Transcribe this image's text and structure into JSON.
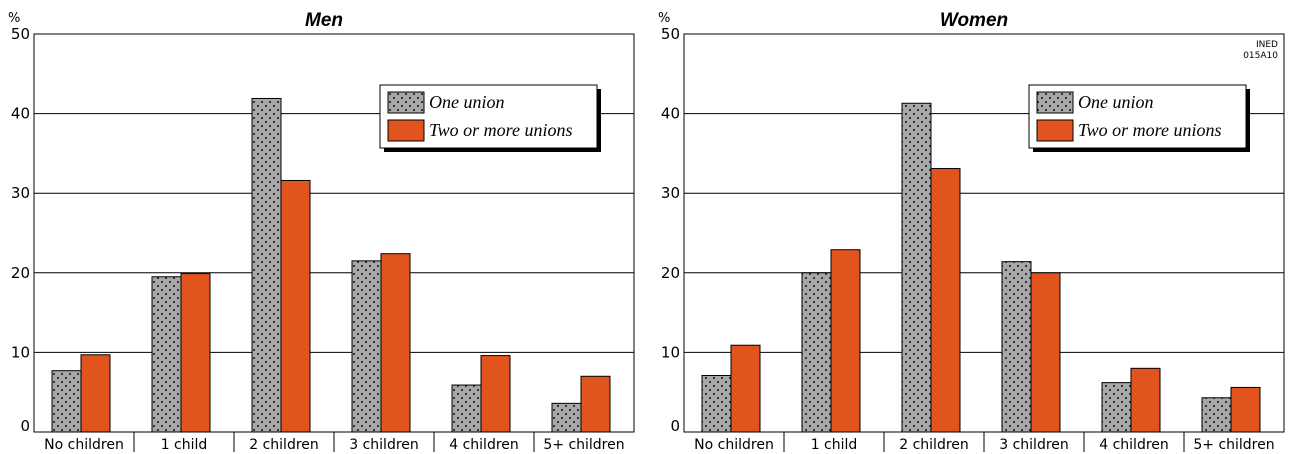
{
  "chart_data": [
    {
      "type": "bar",
      "title": "Men",
      "ylabel": "%",
      "ylim": [
        0,
        50
      ],
      "yticks": [
        0,
        10,
        20,
        30,
        40,
        50
      ],
      "categories": [
        "No children",
        "1 child",
        "2 children",
        "3 children",
        "4 children",
        "5+ children"
      ],
      "series": [
        {
          "name": "One union",
          "values": [
            7.7,
            19.5,
            41.9,
            21.5,
            5.9,
            3.6
          ]
        },
        {
          "name": "Two or more unions",
          "values": [
            9.7,
            19.9,
            31.6,
            22.4,
            9.6,
            7.0
          ]
        }
      ],
      "legend_position": "top-right",
      "grid": true
    },
    {
      "type": "bar",
      "title": "Women",
      "ylabel": "%",
      "ylim": [
        0,
        50
      ],
      "yticks": [
        0,
        10,
        20,
        30,
        40,
        50
      ],
      "categories": [
        "No children",
        "1 child",
        "2 children",
        "3 children",
        "4 children",
        "5+ children"
      ],
      "series": [
        {
          "name": "One union",
          "values": [
            7.1,
            20.0,
            41.3,
            21.4,
            6.2,
            4.3
          ]
        },
        {
          "name": "Two or more unions",
          "values": [
            10.9,
            22.9,
            33.1,
            20.0,
            8.0,
            5.6
          ]
        }
      ],
      "legend_position": "top-right",
      "grid": true,
      "source_label": [
        "INED",
        "015A10"
      ]
    }
  ],
  "colors": {
    "one_union_fill": "#a8a8a8",
    "one_union_dots": "#2a2a2a",
    "two_unions_fill": "#e2541e",
    "axis": "#000000",
    "legend_shadow": "#000000"
  }
}
